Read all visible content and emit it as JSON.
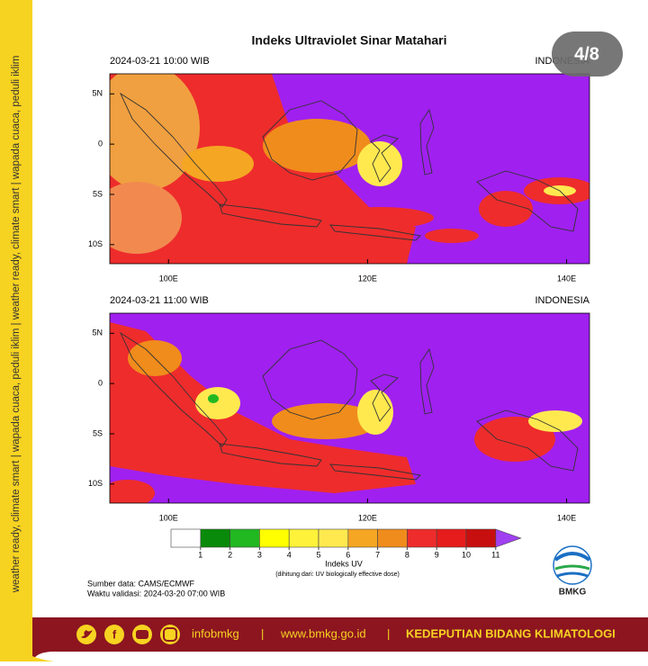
{
  "side_text": "weather ready, climate smart | wapada cuaca, peduli iklim | weather ready, climate smart | wapada cuaca, peduli iklim",
  "badge": "4/8",
  "title": "Indeks Ultraviolet Sinar Matahari",
  "maps": [
    {
      "time": "2024-03-21  10:00 WIB",
      "region": "INDONESIA"
    },
    {
      "time": "2024-03-21  11:00 WIB",
      "region": "INDONESIA"
    }
  ],
  "xlim": [
    94.1,
    142.3
  ],
  "ylim": [
    -11.9,
    7
  ],
  "xticks": [
    {
      "value": 100,
      "label": "100E"
    },
    {
      "value": 120,
      "label": "120E"
    },
    {
      "value": 140,
      "label": "140E"
    }
  ],
  "yticks": [
    {
      "value": 5,
      "label": "5N"
    },
    0,
    {
      "value": -5,
      "label": "5S"
    },
    {
      "value": -10,
      "label": "10S"
    }
  ],
  "colorbar": {
    "ticks": [
      1,
      2,
      3,
      4,
      5,
      6,
      7,
      8,
      9,
      10,
      11
    ],
    "colors": [
      "#ffffff",
      "#0a8a0a",
      "#22b822",
      "#ffff00",
      "#fff23a",
      "#ffe94f",
      "#f5a623",
      "#f08c1c",
      "#ee2c2c",
      "#e61c1c",
      "#c80f0f"
    ],
    "extend_color": "#a040f0",
    "title": "Indeks UV",
    "note": "(dihitung dari: UV biologically effective dose)"
  },
  "source": "Sumber data: CAMS/ECMWF",
  "validity": "Waktu validasi: 2024-03-20 07:00 WIB",
  "logo": "BMKG",
  "footer": {
    "social": "infobmkg",
    "website": "www.bmkg.go.id",
    "department": "KEDEPUTIAN BIDANG KLIMATOLOGI"
  }
}
